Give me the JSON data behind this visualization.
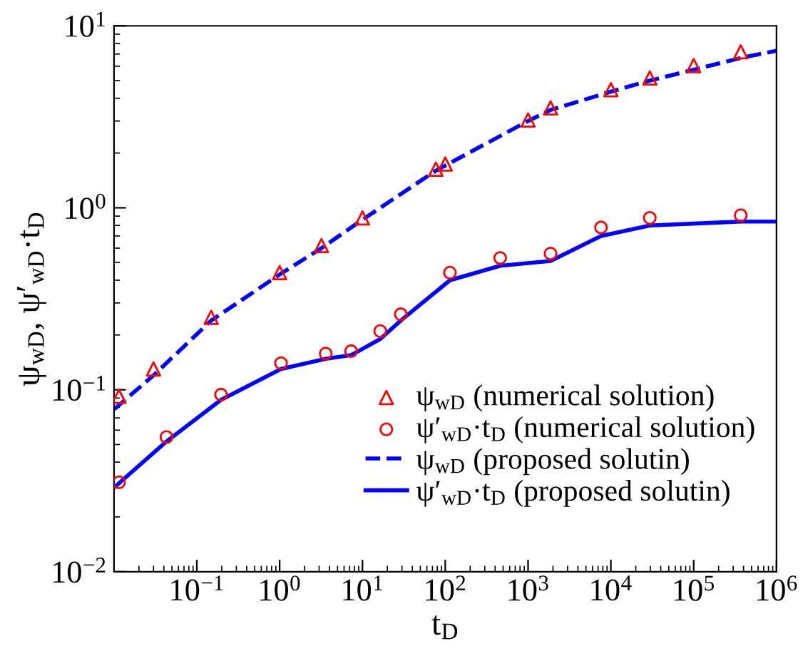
{
  "chart_data": {
    "type": "line",
    "xlabel": "t$_{D}$",
    "ylabel": "ψ$_{wD}$, ψ′$_{wD}$·t$_{D}$",
    "log": "xy",
    "grid": false,
    "legend": "lower right",
    "xlim": [
      0.01,
      1000000
    ],
    "ylim": [
      0.01,
      10
    ],
    "xticks": [
      {
        "value": 0.1,
        "label": "10$^{−1}$"
      },
      {
        "value": 1,
        "label": "10$^{0}$"
      },
      {
        "value": 10,
        "label": "10$^{1}$"
      },
      {
        "value": 100,
        "label": "10$^{2}$"
      },
      {
        "value": 1000,
        "label": "10$^{3}$"
      },
      {
        "value": 10000,
        "label": "10$^{4}$"
      },
      {
        "value": 100000,
        "label": "10$^{5}$"
      },
      {
        "value": 1000000,
        "label": "10$^{6}$"
      }
    ],
    "yticks": [
      {
        "value": 0.01,
        "label": "10$^{−2}$"
      },
      {
        "value": 0.1,
        "label": "10$^{−1}$"
      },
      {
        "value": 1,
        "label": "10$^{0}$"
      },
      {
        "value": 10,
        "label": "10$^{1}$"
      }
    ],
    "series": [
      {
        "name": "ψ$_{wD}$ (numerical solution)",
        "type": "scatter",
        "marker": "triangle",
        "color": "#ff0000",
        "x": [
          0.0115,
          0.03,
          0.149,
          1,
          3.2,
          10,
          77,
          100,
          1000,
          1870,
          10000,
          29500,
          100000,
          370000
        ],
        "values": [
          0.092,
          0.13,
          0.25,
          0.44,
          0.62,
          0.88,
          1.63,
          1.74,
          3.04,
          3.54,
          4.46,
          5.17,
          6.05,
          7.2
        ]
      },
      {
        "name": "ψ′$_{wD}$·t$_{D}$ (numerical solution)",
        "type": "scatter",
        "marker": "circle",
        "color": "#ff0000",
        "x": [
          0.0115,
          0.043,
          0.196,
          1.04,
          3.6,
          7.3,
          16.4,
          29,
          114,
          460,
          1870,
          7600,
          29500,
          370000
        ],
        "values": [
          0.031,
          0.055,
          0.094,
          0.14,
          0.158,
          0.163,
          0.21,
          0.26,
          0.44,
          0.53,
          0.56,
          0.78,
          0.88,
          0.91
        ]
      },
      {
        "name": "ψ$_{wD}$ (proposed solutin)",
        "line_style": "dashed",
        "color": "#0000ff",
        "x": [
          0.01,
          0.03,
          0.149,
          1,
          3.2,
          10,
          77,
          1000,
          1870,
          10000,
          29500,
          370000,
          1000000
        ],
        "values": [
          0.078,
          0.12,
          0.24,
          0.43,
          0.6,
          0.86,
          1.6,
          3.0,
          3.45,
          4.35,
          5.0,
          6.66,
          7.3
        ]
      },
      {
        "name": "ψ′$_{wD}$·t$_{D}$ (proposed solutin)",
        "line_style": "solid",
        "color": "#0000ff",
        "x": [
          0.01,
          0.043,
          0.196,
          1.04,
          3.6,
          7.3,
          16.4,
          29,
          114,
          460,
          1870,
          7600,
          29500,
          370000,
          1000000
        ],
        "values": [
          0.029,
          0.052,
          0.088,
          0.13,
          0.148,
          0.155,
          0.19,
          0.24,
          0.4,
          0.48,
          0.51,
          0.7,
          0.8,
          0.84,
          0.84
        ]
      }
    ]
  }
}
